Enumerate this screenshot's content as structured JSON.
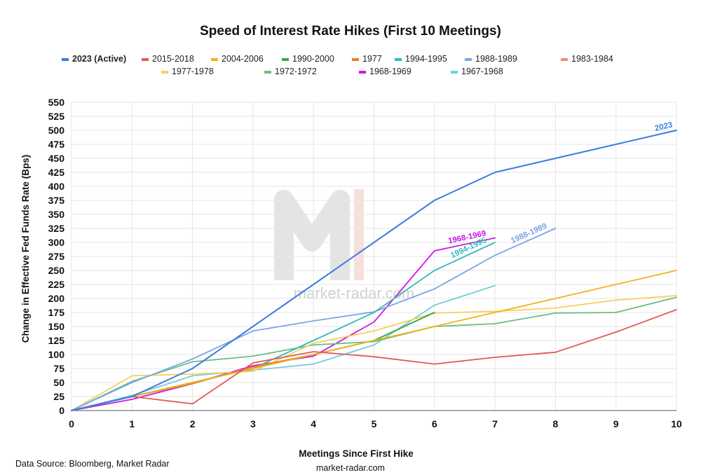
{
  "chart_data": {
    "type": "line",
    "title": "Speed of Interest Rate Hikes (First 10 Meetings)",
    "xlabel": "Meetings Since First Hike",
    "ylabel": "Change in Effective Fed Funds Rate (Bps)",
    "xlim": [
      0,
      10
    ],
    "ylim": [
      0,
      550
    ],
    "x_ticks": [
      0,
      1,
      2,
      3,
      4,
      5,
      6,
      7,
      8,
      9,
      10
    ],
    "y_ticks": [
      0,
      25,
      50,
      75,
      100,
      125,
      150,
      175,
      200,
      225,
      250,
      275,
      300,
      325,
      350,
      375,
      400,
      425,
      450,
      475,
      500,
      525,
      550
    ],
    "grid": true,
    "legend_position": "top",
    "source": "Data Source: Bloomberg, Market Radar",
    "footer": "market-radar.com",
    "watermark": "market-radar.com",
    "series": [
      {
        "name": "2023 (Active)",
        "color": "#3b7ddd",
        "label": "2023",
        "bold_legend": true,
        "x": [
          0,
          1,
          2,
          3,
          4,
          5,
          6,
          7,
          8,
          9,
          10
        ],
        "y": [
          0,
          25,
          75,
          150,
          225,
          300,
          375,
          425,
          450,
          475,
          500
        ]
      },
      {
        "name": "2015-2018",
        "color": "#e15b55",
        "x": [
          0,
          1,
          2,
          3,
          4,
          5,
          6,
          7,
          8,
          9,
          10
        ],
        "y": [
          0,
          25,
          12,
          85,
          105,
          96,
          83,
          95,
          104,
          140,
          180
        ]
      },
      {
        "name": "2004-2006",
        "color": "#f2b418",
        "x": [
          0,
          1,
          2,
          3,
          4,
          5,
          6,
          7,
          8,
          9,
          10
        ],
        "y": [
          0,
          25,
          50,
          75,
          100,
          125,
          150,
          175,
          200,
          225,
          250
        ]
      },
      {
        "name": "1990-2000",
        "color": "#3aa64c",
        "x": [
          0,
          1,
          2,
          3,
          4,
          5,
          6
        ],
        "y": [
          0,
          25,
          50,
          75,
          100,
          125,
          175
        ]
      },
      {
        "name": "1977",
        "color": "#f07c28",
        "x": [
          0,
          1,
          2,
          3,
          4,
          5
        ],
        "y": [
          0,
          25,
          48,
          78,
          100,
          125
        ]
      },
      {
        "name": "1994-1995",
        "color": "#36b8bd",
        "label": "1994-1995",
        "x": [
          0,
          1,
          2,
          3,
          4,
          5,
          6,
          7
        ],
        "y": [
          0,
          25,
          50,
          75,
          125,
          175,
          250,
          300
        ]
      },
      {
        "name": "1988-1989",
        "color": "#7aa5e6",
        "label": "1988-1989",
        "x": [
          0,
          1,
          2,
          3,
          4,
          5,
          6,
          7,
          8
        ],
        "y": [
          0,
          50,
          92,
          142,
          160,
          176,
          217,
          277,
          325
        ]
      },
      {
        "name": "1983-1984",
        "color": "#ef8a80",
        "x": [
          0,
          1,
          2,
          3
        ],
        "y": [
          0,
          25,
          50,
          75
        ]
      },
      {
        "name": "1977-1978",
        "color": "#f7ce5e",
        "x": [
          0,
          1,
          2,
          3,
          4,
          5,
          6,
          7,
          8,
          9,
          10
        ],
        "y": [
          0,
          62,
          65,
          70,
          120,
          142,
          174,
          177,
          183,
          197,
          205
        ]
      },
      {
        "name": "1972-1972",
        "color": "#69be83",
        "x": [
          0,
          1,
          2,
          3,
          4,
          5,
          6,
          7,
          8,
          9,
          10
        ],
        "y": [
          0,
          52,
          87,
          97,
          117,
          123,
          150,
          155,
          174,
          175,
          202
        ]
      },
      {
        "name": "1968-1969",
        "color": "#cc18e6",
        "label": "1968-1969",
        "x": [
          0,
          1,
          2,
          3,
          4,
          5,
          6,
          7
        ],
        "y": [
          0,
          20,
          48,
          80,
          97,
          158,
          285,
          308
        ]
      },
      {
        "name": "1967-1968",
        "color": "#74ccd6",
        "x": [
          0,
          1,
          2,
          3,
          4,
          5,
          6,
          7
        ],
        "y": [
          0,
          27,
          62,
          72,
          83,
          117,
          188,
          223
        ]
      }
    ]
  }
}
